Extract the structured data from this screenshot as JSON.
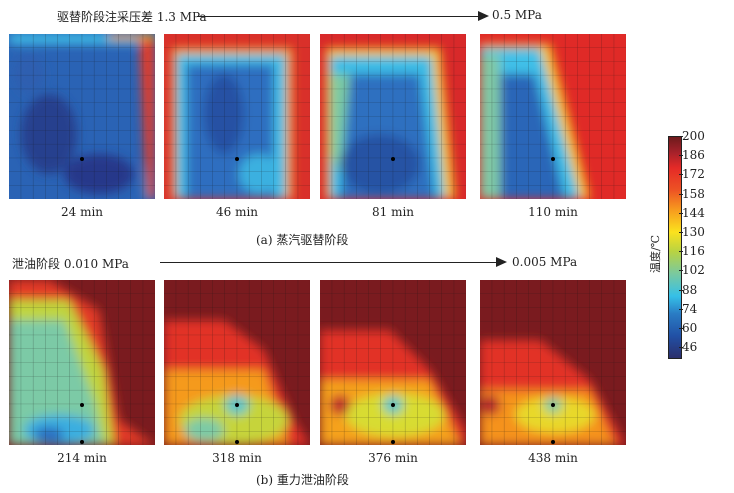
{
  "top_row": {
    "title": "驱替阶段注采压差 1.3 MPa",
    "end_value": "0.5 MPa",
    "caption": "(a) 蒸汽驱替阶段",
    "panels": [
      {
        "label": "24 min"
      },
      {
        "label": "46 min"
      },
      {
        "label": "81 min"
      },
      {
        "label": "110 min"
      }
    ]
  },
  "bottom_row": {
    "title": "泄油阶段 0.010 MPa",
    "end_value": "0.005 MPa",
    "caption": "(b) 重力泄油阶段",
    "panels": [
      {
        "label": "214 min"
      },
      {
        "label": "318 min"
      },
      {
        "label": "376 min"
      },
      {
        "label": "438 min"
      }
    ]
  },
  "colorbar": {
    "title": "温度/℃",
    "ticks": [
      "200",
      "186",
      "172",
      "158",
      "144",
      "130",
      "116",
      "102",
      "88",
      "74",
      "60",
      "46"
    ]
  }
}
